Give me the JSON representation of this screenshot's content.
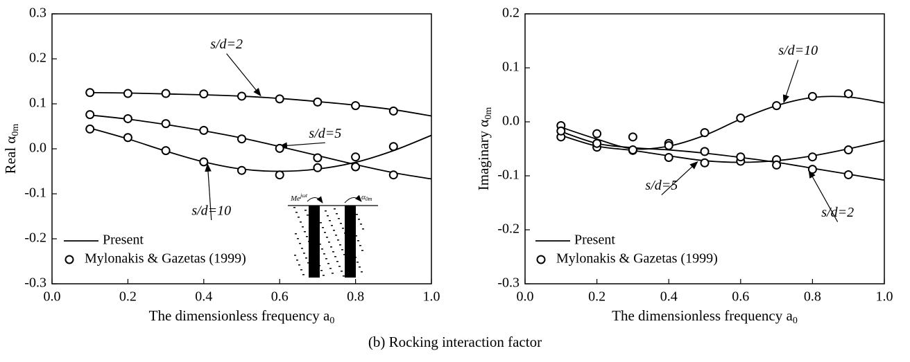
{
  "chart_data": [
    {
      "type": "line",
      "xlabel": {
        "text": "The dimensionless frequency a",
        "sub": "0"
      },
      "ylabel": {
        "text": "Real α",
        "sub": "0m"
      },
      "xlim": [
        0,
        1
      ],
      "xticks": [
        {
          "value": 0,
          "label": "0.0"
        },
        0.2,
        0.4,
        0.6,
        0.8,
        {
          "value": 1,
          "label": "1.0"
        }
      ],
      "ylim": [
        -0.3,
        0.3
      ],
      "yticks": [
        -0.3,
        -0.2,
        -0.1,
        {
          "value": 0,
          "label": "0.0"
        },
        0.1,
        0.2,
        0.3
      ],
      "legend": [
        "Present",
        "Mylonakis & Gazetas (1999)"
      ],
      "legend_position": "lower left",
      "color": "#000000",
      "x": [
        0.1,
        0.2,
        0.3,
        0.4,
        0.5,
        0.6,
        0.7,
        0.8,
        0.9,
        1.0
      ],
      "curves": [
        {
          "label": "s/d=2",
          "values": [
            0.125,
            0.124,
            0.122,
            0.12,
            0.117,
            0.112,
            0.105,
            0.097,
            0.087,
            0.073
          ]
        },
        {
          "label": "s/d=5",
          "values": [
            0.075,
            0.066,
            0.054,
            0.04,
            0.024,
            0.005,
            -0.015,
            -0.035,
            -0.053,
            -0.067
          ]
        },
        {
          "label": "s/d=10",
          "values": [
            0.046,
            0.022,
            -0.005,
            -0.029,
            -0.045,
            -0.05,
            -0.045,
            -0.03,
            -0.004,
            0.03
          ]
        }
      ],
      "points_x": [
        0.1,
        0.2,
        0.3,
        0.4,
        0.5,
        0.6,
        0.7,
        0.8,
        0.9
      ],
      "points": [
        {
          "values": [
            0.125,
            0.123,
            0.123,
            0.122,
            0.117,
            0.111,
            0.104,
            0.096,
            0.084
          ]
        },
        {
          "values": [
            0.076,
            0.067,
            0.056,
            0.041,
            0.022,
            0.001,
            -0.02,
            -0.04,
            -0.058
          ]
        },
        {
          "values": [
            0.044,
            0.025,
            -0.004,
            -0.029,
            -0.048,
            -0.058,
            -0.042,
            -0.018,
            0.005
          ]
        }
      ],
      "inset": {
        "load_base": "Me",
        "load_sup": "jωt",
        "response_base": "α",
        "response_sub": "0m"
      }
    },
    {
      "type": "line",
      "xlabel": {
        "text": "The dimensionless frequency a",
        "sub": "0"
      },
      "ylabel": {
        "text": "Imaginary α",
        "sub": "0m"
      },
      "xlim": [
        0,
        1
      ],
      "xticks": [
        {
          "value": 0,
          "label": "0.0"
        },
        0.2,
        0.4,
        0.6,
        0.8,
        {
          "value": 1,
          "label": "1.0"
        }
      ],
      "ylim": [
        -0.3,
        0.2
      ],
      "yticks": [
        -0.3,
        -0.2,
        -0.1,
        {
          "value": 0,
          "label": "0.0"
        },
        0.1,
        0.2
      ],
      "legend": [
        "Present",
        "Mylonakis & Gazetas (1999)"
      ],
      "legend_position": "lower left",
      "color": "#000000",
      "x": [
        0.1,
        0.2,
        0.3,
        0.4,
        0.5,
        0.6,
        0.7,
        0.8,
        0.9,
        1.0
      ],
      "curves": [
        {
          "label": "s/d=10",
          "values": [
            -0.01,
            -0.032,
            -0.05,
            -0.045,
            -0.025,
            0.005,
            0.03,
            0.045,
            0.046,
            0.035
          ]
        },
        {
          "label": "s/d=5",
          "values": [
            -0.025,
            -0.045,
            -0.053,
            -0.063,
            -0.072,
            -0.075,
            -0.072,
            -0.063,
            -0.05,
            -0.035
          ]
        },
        {
          "label": "s/d=2",
          "values": [
            -0.018,
            -0.04,
            -0.048,
            -0.052,
            -0.058,
            -0.066,
            -0.075,
            -0.086,
            -0.097,
            -0.108
          ]
        }
      ],
      "points_x": [
        0.1,
        0.2,
        0.3,
        0.4,
        0.5,
        0.6,
        0.7,
        0.8,
        0.9
      ],
      "points": [
        {
          "values": [
            -0.007,
            -0.022,
            -0.028,
            -0.04,
            -0.02,
            0.007,
            0.03,
            0.047,
            0.052
          ]
        },
        {
          "values": [
            -0.028,
            -0.047,
            -0.053,
            -0.066,
            -0.076,
            -0.073,
            -0.07,
            -0.065,
            -0.052
          ]
        },
        {
          "values": [
            -0.017,
            -0.04,
            -0.052,
            -0.044,
            -0.055,
            -0.065,
            -0.08,
            -0.088,
            -0.098
          ]
        }
      ]
    }
  ],
  "caption": "(b) Rocking interaction factor"
}
